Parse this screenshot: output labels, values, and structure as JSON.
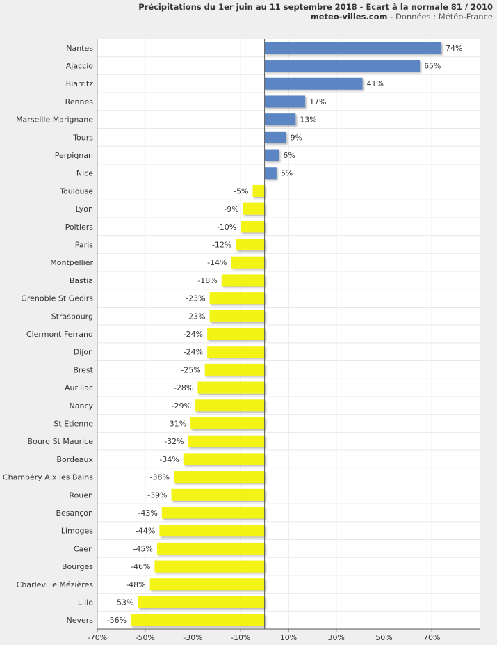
{
  "header": {
    "title": "Précipitations du 1er juin au 11 septembre 2018 - Ecart à la normale 81 / 2010",
    "site": "meteo-villes.com",
    "source": " - Données : Météo-France"
  },
  "colors": {
    "positive": "#5b86c3",
    "negative": "#f3f312",
    "plot_bg": "#ffffff",
    "page_bg": "#efefef",
    "grid": "#dddddd"
  },
  "chart_data": {
    "type": "bar",
    "orientation": "horizontal",
    "xlim": [
      -70,
      90
    ],
    "xticks": [
      -70,
      -50,
      -30,
      -10,
      10,
      30,
      50,
      70
    ],
    "xtick_labels": [
      "-70%",
      "-50%",
      "-30%",
      "-10%",
      "10%",
      "30%",
      "50%",
      "70%"
    ],
    "grid": true,
    "categories": [
      "Nantes",
      "Ajaccio",
      "Biarritz",
      "Rennes",
      "Marseille Marignane",
      "Tours",
      "Perpignan",
      "Nice",
      "Toulouse",
      "Lyon",
      "Poitiers",
      "Paris",
      "Montpellier",
      "Bastia",
      "Grenoble St Geoirs",
      "Strasbourg",
      "Clermont Ferrand",
      "Dijon",
      "Brest",
      "Aurillac",
      "Nancy",
      "St Etienne",
      "Bourg St Maurice",
      "Bordeaux",
      "Chambéry Aix les Bains",
      "Rouen",
      "Besançon",
      "Limoges",
      "Caen",
      "Bourges",
      "Charleville Mézières",
      "Lille",
      "Nevers"
    ],
    "values": [
      74,
      65,
      41,
      17,
      13,
      9,
      6,
      5,
      -5,
      -9,
      -10,
      -12,
      -14,
      -18,
      -23,
      -23,
      -24,
      -24,
      -25,
      -28,
      -29,
      -31,
      -32,
      -34,
      -38,
      -39,
      -43,
      -44,
      -45,
      -46,
      -48,
      -53,
      -56
    ],
    "value_labels": [
      "74%",
      "65%",
      "41%",
      "17%",
      "13%",
      "9%",
      "6%",
      "5%",
      "-5%",
      "-9%",
      "-10%",
      "-12%",
      "-14%",
      "-18%",
      "-23%",
      "-23%",
      "-24%",
      "-24%",
      "-25%",
      "-28%",
      "-29%",
      "-31%",
      "-32%",
      "-34%",
      "-38%",
      "-39%",
      "-43%",
      "-44%",
      "-45%",
      "-46%",
      "-48%",
      "-53%",
      "-56%"
    ]
  }
}
